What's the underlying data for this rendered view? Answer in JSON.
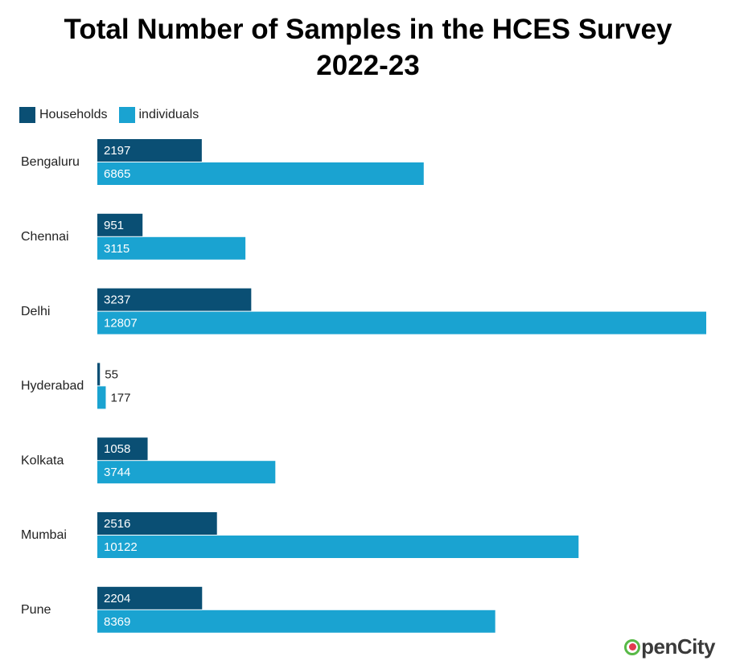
{
  "title_line1": "Total Number of Samples in the HCES Survey",
  "title_line2": "2022-23",
  "logo_text": "penCity",
  "chart_data": {
    "type": "bar",
    "orientation": "horizontal",
    "title": "Total Number of Samples in the HCES Survey 2022-23",
    "categories": [
      "Bengaluru",
      "Chennai",
      "Delhi",
      "Hyderabad",
      "Kolkata",
      "Mumbai",
      "Pune"
    ],
    "series": [
      {
        "name": "Households",
        "color": "#0a4f74",
        "values": [
          2197,
          951,
          3237,
          55,
          1058,
          2516,
          2204
        ]
      },
      {
        "name": "individuals",
        "color": "#1aa3d1",
        "values": [
          6865,
          3115,
          12807,
          177,
          3744,
          10122,
          8369
        ]
      }
    ],
    "xlim": [
      0,
      12807
    ],
    "grid": false,
    "legend": "top-left",
    "data_labels": true
  }
}
